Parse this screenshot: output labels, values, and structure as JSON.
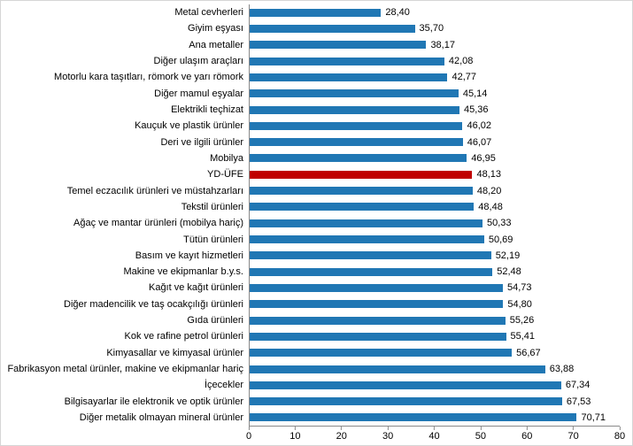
{
  "chart_data": {
    "type": "bar",
    "orientation": "horizontal",
    "title": "",
    "xlabel": "",
    "ylabel": "",
    "xlim": [
      0,
      80
    ],
    "x_ticks": [
      0,
      10,
      20,
      30,
      40,
      50,
      60,
      70,
      80
    ],
    "grid": false,
    "legend": false,
    "bar_color": "#2077b4",
    "highlight_color": "#c00000",
    "highlight_category": "YD-ÜFE",
    "categories": [
      "Metal cevherleri",
      "Giyim eşyası",
      "Ana metaller",
      "Diğer ulaşım araçları",
      "Motorlu kara taşıtları, römork ve yarı römork",
      "Diğer mamul eşyalar",
      "Elektrikli teçhizat",
      "Kauçuk ve plastik ürünler",
      "Deri ve ilgili ürünler",
      "Mobilya",
      "YD-ÜFE",
      "Temel eczacılık ürünleri ve müstahzarları",
      "Tekstil ürünleri",
      "Ağaç ve mantar ürünleri (mobilya hariç)",
      "Tütün ürünleri",
      "Basım ve kayıt hizmetleri",
      "Makine ve ekipmanlar b.y.s.",
      "Kağıt ve kağıt ürünleri",
      "Diğer madencilik ve taş ocakçılığı ürünleri",
      "Gıda ürünleri",
      "Kok ve rafine petrol ürünleri",
      "Kimyasallar ve kimyasal ürünler",
      "Fabrikasyon metal ürünler, makine ve ekipmanlar hariç",
      "İçecekler",
      "Bilgisayarlar ile elektronik ve optik ürünler",
      "Diğer metalik olmayan mineral ürünler"
    ],
    "values": [
      28.4,
      35.7,
      38.17,
      42.08,
      42.77,
      45.14,
      45.36,
      46.02,
      46.07,
      46.95,
      48.13,
      48.2,
      48.48,
      50.33,
      50.69,
      52.19,
      52.48,
      54.73,
      54.8,
      55.26,
      55.41,
      56.67,
      63.88,
      67.34,
      67.53,
      70.71
    ],
    "value_labels": [
      "28,40",
      "35,70",
      "38,17",
      "42,08",
      "42,77",
      "45,14",
      "45,36",
      "46,02",
      "46,07",
      "46,95",
      "48,13",
      "48,20",
      "48,48",
      "50,33",
      "50,69",
      "52,19",
      "52,48",
      "54,73",
      "54,80",
      "55,26",
      "55,41",
      "56,67",
      "63,88",
      "67,34",
      "67,53",
      "70,71"
    ]
  }
}
